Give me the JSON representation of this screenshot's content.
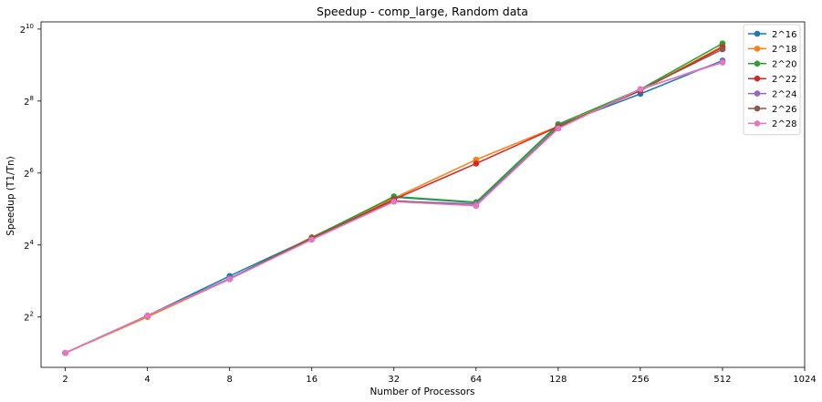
{
  "chart_data": {
    "type": "line",
    "title": "Speedup - comp_large, Random data",
    "xlabel": "Number of Processors",
    "ylabel": "Speedup (T1/Tn)",
    "xscale": "log2",
    "yscale": "log2",
    "x_ticks": [
      2,
      4,
      8,
      16,
      32,
      64,
      128,
      256,
      512,
      1024
    ],
    "x_tick_labels": [
      "2",
      "4",
      "8",
      "16",
      "32",
      "64",
      "128",
      "256",
      "512",
      "1024"
    ],
    "y_ticks": [
      2,
      4,
      6,
      8,
      10
    ],
    "y_tick_labels": [
      {
        "base": "2",
        "exp": "2"
      },
      {
        "base": "2",
        "exp": "4"
      },
      {
        "base": "2",
        "exp": "6"
      },
      {
        "base": "2",
        "exp": "8"
      },
      {
        "base": "2",
        "exp": "10"
      }
    ],
    "xlim": [
      1.63,
      1024
    ],
    "ylim_log2": [
      0.6,
      10.2
    ],
    "legend_position": "top-right",
    "grid": false,
    "x": [
      2,
      4,
      8,
      16,
      32,
      64,
      128,
      256,
      512
    ],
    "series": [
      {
        "name": "2^16",
        "color": "#1f77b4",
        "values": [
          2.0,
          4.1,
          8.8,
          18.4,
          40.3,
          36.1,
          161.3,
          294.1,
          558.6
        ]
      },
      {
        "name": "2^18",
        "color": "#ff7f0e",
        "values": [
          2.0,
          4.0,
          8.3,
          18.6,
          39.5,
          82.7,
          157.6,
          315.9,
          735.9
        ]
      },
      {
        "name": "2^20",
        "color": "#2ca02c",
        "values": [
          2.0,
          4.1,
          8.4,
          18.4,
          40.8,
          36.5,
          163.9,
          321.1,
          776.9
        ]
      },
      {
        "name": "2^22",
        "color": "#d62728",
        "values": [
          2.0,
          4.1,
          8.3,
          18.2,
          38.5,
          76.8,
          156.8,
          312.5,
          723.4
        ]
      },
      {
        "name": "2^24",
        "color": "#9467bd",
        "values": [
          2.0,
          4.1,
          8.4,
          18.0,
          37.3,
          35.2,
          152.6,
          319.9,
          549.3
        ]
      },
      {
        "name": "2^26",
        "color": "#8c564b",
        "values": [
          2.0,
          4.1,
          8.3,
          18.3,
          37.6,
          34.1,
          155.2,
          318.5,
          693.5
        ]
      },
      {
        "name": "2^28",
        "color": "#e377c2",
        "values": [
          2.0,
          4.1,
          8.3,
          17.7,
          36.8,
          34.1,
          150.8,
          323.0,
          538.2
        ]
      }
    ]
  }
}
